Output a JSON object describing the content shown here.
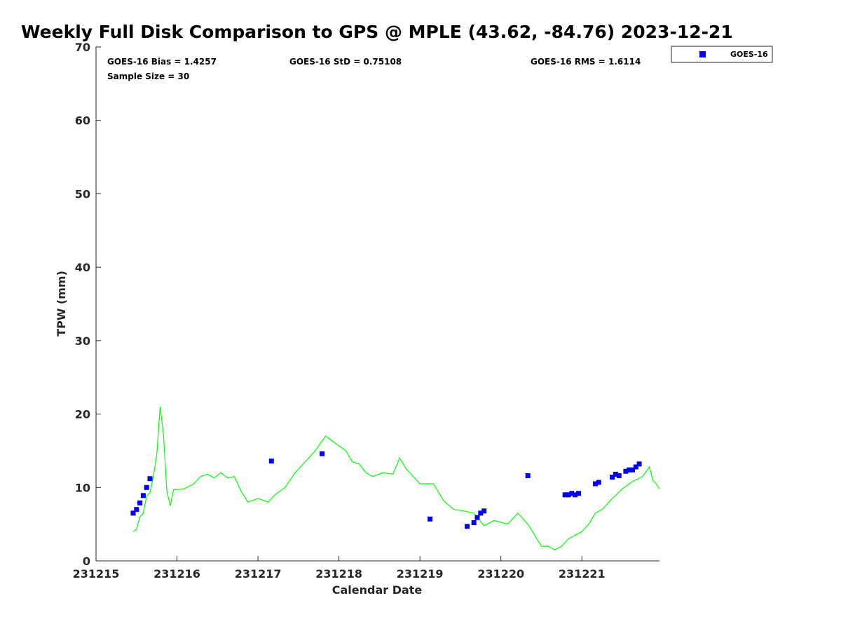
{
  "chart_data": {
    "type": "scatter",
    "title": "Weekly Full Disk Comparison to GPS @ MPLE (43.62, -84.76) 2023-12-21",
    "xlabel": "Calendar Date",
    "ylabel": "TPW (mm)",
    "xlim": [
      "2023-12-15T00:00",
      "2023-12-21T23:00"
    ],
    "ylim": [
      0,
      70
    ],
    "x_ticks": [
      "231215",
      "231216",
      "231217",
      "231218",
      "231219",
      "231220",
      "231221"
    ],
    "y_ticks": [
      "0",
      "10",
      "20",
      "30",
      "40",
      "50",
      "60",
      "70"
    ],
    "grid": false,
    "legend_position": "top-right outside",
    "stats": {
      "bias": "GOES-16 Bias = 1.4257",
      "std": "GOES-16 StD = 0.75108",
      "rms": "GOES-16 RMS = 1.6114",
      "sample": "Sample Size = 30"
    },
    "series": [
      {
        "name": "GOES-16",
        "kind": "scatter",
        "marker": "square",
        "color": "#0000ee",
        "points": [
          [
            "2023-12-15T11:00",
            6.5
          ],
          [
            "2023-12-15T12:00",
            7.0
          ],
          [
            "2023-12-15T13:00",
            7.9
          ],
          [
            "2023-12-15T14:00",
            8.9
          ],
          [
            "2023-12-15T15:00",
            10.0
          ],
          [
            "2023-12-15T16:00",
            11.2
          ],
          [
            "2023-12-17T04:00",
            13.6
          ],
          [
            "2023-12-17T19:00",
            14.6
          ],
          [
            "2023-12-19T03:00",
            5.7
          ],
          [
            "2023-12-19T14:00",
            4.7
          ],
          [
            "2023-12-19T16:00",
            5.2
          ],
          [
            "2023-12-19T17:00",
            5.9
          ],
          [
            "2023-12-19T18:00",
            6.5
          ],
          [
            "2023-12-19T19:00",
            6.8
          ],
          [
            "2023-12-20T08:00",
            11.6
          ],
          [
            "2023-12-20T19:00",
            9.0
          ],
          [
            "2023-12-20T20:00",
            9.0
          ],
          [
            "2023-12-20T21:00",
            9.2
          ],
          [
            "2023-12-20T22:00",
            9.0
          ],
          [
            "2023-12-20T23:00",
            9.2
          ],
          [
            "2023-12-21T04:00",
            10.5
          ],
          [
            "2023-12-21T05:00",
            10.7
          ],
          [
            "2023-12-21T09:00",
            11.4
          ],
          [
            "2023-12-21T10:00",
            11.8
          ],
          [
            "2023-12-21T11:00",
            11.6
          ],
          [
            "2023-12-21T13:00",
            12.2
          ],
          [
            "2023-12-21T14:00",
            12.4
          ],
          [
            "2023-12-21T15:00",
            12.4
          ],
          [
            "2023-12-21T16:00",
            12.8
          ],
          [
            "2023-12-21T17:00",
            13.2
          ]
        ]
      },
      {
        "kind": "line",
        "color": "#00ff00",
        "points": [
          [
            "2023-12-15T11:00",
            4.0
          ],
          [
            "2023-12-15T12:00",
            4.3
          ],
          [
            "2023-12-15T13:00",
            6.0
          ],
          [
            "2023-12-15T14:00",
            6.5
          ],
          [
            "2023-12-15T15:00",
            8.8
          ],
          [
            "2023-12-15T16:00",
            9.3
          ],
          [
            "2023-12-15T17:00",
            11.5
          ],
          [
            "2023-12-15T18:00",
            14.5
          ],
          [
            "2023-12-15T19:00",
            21.0
          ],
          [
            "2023-12-15T20:00",
            17.2
          ],
          [
            "2023-12-15T21:00",
            9.5
          ],
          [
            "2023-12-15T22:00",
            7.5
          ],
          [
            "2023-12-15T23:00",
            9.7
          ],
          [
            "2023-12-16T02:00",
            9.8
          ],
          [
            "2023-12-16T05:00",
            10.5
          ],
          [
            "2023-12-16T07:00",
            11.5
          ],
          [
            "2023-12-16T09:00",
            11.8
          ],
          [
            "2023-12-16T11:00",
            11.3
          ],
          [
            "2023-12-16T13:00",
            12.0
          ],
          [
            "2023-12-16T15:00",
            11.3
          ],
          [
            "2023-12-16T17:00",
            11.5
          ],
          [
            "2023-12-16T19:00",
            9.5
          ],
          [
            "2023-12-16T21:00",
            8.0
          ],
          [
            "2023-12-17T00:00",
            8.5
          ],
          [
            "2023-12-17T03:00",
            8.0
          ],
          [
            "2023-12-17T05:00",
            9.0
          ],
          [
            "2023-12-17T08:00",
            10.0
          ],
          [
            "2023-12-17T11:00",
            12.0
          ],
          [
            "2023-12-17T14:00",
            13.5
          ],
          [
            "2023-12-17T17:00",
            15.0
          ],
          [
            "2023-12-17T20:00",
            17.0
          ],
          [
            "2023-12-17T23:00",
            16.0
          ],
          [
            "2023-12-18T02:00",
            15.0
          ],
          [
            "2023-12-18T04:00",
            13.5
          ],
          [
            "2023-12-18T06:00",
            13.2
          ],
          [
            "2023-12-18T08:00",
            12.0
          ],
          [
            "2023-12-18T10:00",
            11.5
          ],
          [
            "2023-12-18T13:00",
            12.0
          ],
          [
            "2023-12-18T16:00",
            11.8
          ],
          [
            "2023-12-18T18:00",
            14.0
          ],
          [
            "2023-12-18T20:00",
            12.5
          ],
          [
            "2023-12-18T22:00",
            11.5
          ],
          [
            "2023-12-19T00:00",
            10.5
          ],
          [
            "2023-12-19T04:00",
            10.5
          ],
          [
            "2023-12-19T07:00",
            8.2
          ],
          [
            "2023-12-19T10:00",
            7.0
          ],
          [
            "2023-12-19T13:00",
            6.8
          ],
          [
            "2023-12-19T16:00",
            6.5
          ],
          [
            "2023-12-19T19:00",
            4.8
          ],
          [
            "2023-12-19T22:00",
            5.5
          ],
          [
            "2023-12-20T02:00",
            5.0
          ],
          [
            "2023-12-20T05:00",
            6.5
          ],
          [
            "2023-12-20T08:00",
            5.0
          ],
          [
            "2023-12-20T10:00",
            3.5
          ],
          [
            "2023-12-20T12:00",
            2.0
          ],
          [
            "2023-12-20T14:00",
            2.0
          ],
          [
            "2023-12-20T16:00",
            1.5
          ],
          [
            "2023-12-20T18:00",
            2.0
          ],
          [
            "2023-12-20T20:00",
            3.0
          ],
          [
            "2023-12-20T22:00",
            3.5
          ],
          [
            "2023-12-21T00:00",
            4.0
          ],
          [
            "2023-12-21T02:00",
            5.0
          ],
          [
            "2023-12-21T04:00",
            6.5
          ],
          [
            "2023-12-21T06:00",
            7.0
          ],
          [
            "2023-12-21T09:00",
            8.5
          ],
          [
            "2023-12-21T12:00",
            9.8
          ],
          [
            "2023-12-21T15:00",
            10.8
          ],
          [
            "2023-12-21T18:00",
            11.5
          ],
          [
            "2023-12-21T20:00",
            12.8
          ],
          [
            "2023-12-21T21:00",
            11.0
          ],
          [
            "2023-12-21T22:00",
            10.5
          ],
          [
            "2023-12-21T23:00",
            9.8
          ]
        ]
      }
    ]
  }
}
